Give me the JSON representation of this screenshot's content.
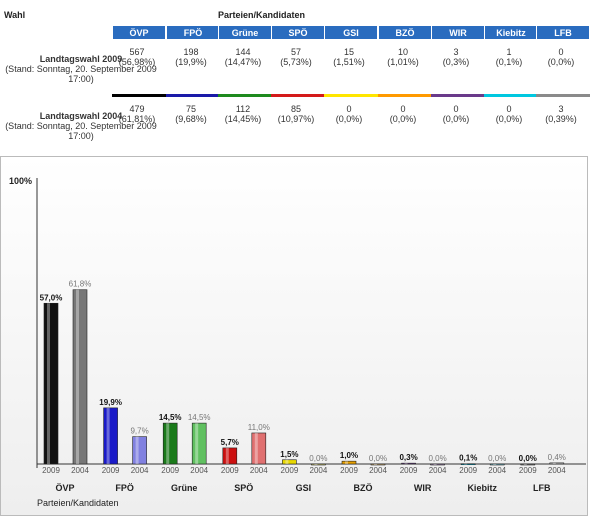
{
  "header": {
    "wahl_label": "Wahl",
    "parties_label": "Parteien/Kandidaten"
  },
  "parties": [
    {
      "name": "ÖVP",
      "color": "#000000"
    },
    {
      "name": "FPÖ",
      "color": "#1a1aa8"
    },
    {
      "name": "Grüne",
      "color": "#1e8a1e"
    },
    {
      "name": "SPÖ",
      "color": "#d41a1a"
    },
    {
      "name": "GSI",
      "color": "#ffe600"
    },
    {
      "name": "BZÖ",
      "color": "#ff9a00"
    },
    {
      "name": "WIR",
      "color": "#6a3a8a"
    },
    {
      "name": "Kiebitz",
      "color": "#00c8e0"
    },
    {
      "name": "LFB",
      "color": "#8a8a8a"
    }
  ],
  "elections": [
    {
      "title": "Landtagswahl 2009",
      "status": "(Stand: Sonntag, 20. September 2009 17:00)",
      "votes": [
        "567",
        "198",
        "144",
        "57",
        "15",
        "10",
        "3",
        "1",
        "0"
      ],
      "percents": [
        "(56,98%)",
        "(19,9%)",
        "(14,47%)",
        "(5,73%)",
        "(1,51%)",
        "(1,01%)",
        "(0,3%)",
        "(0,1%)",
        "(0,0%)"
      ]
    },
    {
      "title": "Landtagswahl 2004",
      "status": "(Stand: Sonntag, 20. September 2009 17:00)",
      "votes": [
        "479",
        "75",
        "112",
        "85",
        "0",
        "0",
        "0",
        "0",
        "3"
      ],
      "percents": [
        "(61,81%)",
        "(9,68%)",
        "(14,45%)",
        "(10,97%)",
        "(0,0%)",
        "(0,0%)",
        "(0,0%)",
        "(0,0%)",
        "(0,39%)"
      ]
    }
  ],
  "chart_data": {
    "type": "bar",
    "categories": [
      "ÖVP",
      "FPÖ",
      "Grüne",
      "SPÖ",
      "GSI",
      "BZÖ",
      "WIR",
      "Kiebitz",
      "LFB"
    ],
    "series": [
      {
        "name": "2009",
        "values": [
          57.0,
          19.9,
          14.5,
          5.7,
          1.5,
          1.0,
          0.3,
          0.1,
          0.0
        ],
        "labels": [
          "57,0%",
          "19,9%",
          "14,5%",
          "5,7%",
          "1,5%",
          "1,0%",
          "0,3%",
          "0,1%",
          "0,0%"
        ]
      },
      {
        "name": "2004",
        "values": [
          61.8,
          9.7,
          14.5,
          11.0,
          0.0,
          0.0,
          0.0,
          0.0,
          0.4
        ],
        "labels": [
          "61,8%",
          "9,7%",
          "14,5%",
          "11,0%",
          "0,0%",
          "0,0%",
          "0,0%",
          "0,0%",
          "0,4%"
        ]
      }
    ],
    "ylim": [
      0,
      100
    ],
    "ymax_label": "100%",
    "xlabel": "Parteien/Kandidaten",
    "grid": false,
    "colors_2009": [
      "#111111",
      "#1a1ac8",
      "#1a7a1a",
      "#cc1010",
      "#e8d800",
      "#e8a000",
      "#6a3a8a",
      "#00b0d0",
      "#888888"
    ],
    "colors_2004": [
      "#777777",
      "#8080e0",
      "#60c060",
      "#e07070",
      "#f0e880",
      "#f0c880",
      "#b090c0",
      "#80d8e8",
      "#c0c0c0"
    ]
  }
}
